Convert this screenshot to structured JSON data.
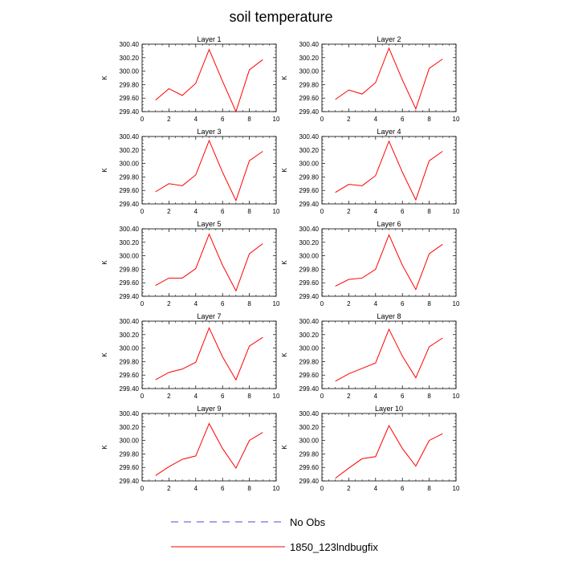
{
  "figure": {
    "title": "soil temperature"
  },
  "legend": {
    "entries": [
      {
        "label": "No Obs",
        "color": "#4b4bd6",
        "style": "dashed"
      },
      {
        "label": "1850_123lndbugfix",
        "color": "#ff0000",
        "style": "solid"
      }
    ]
  },
  "chart_data": [
    {
      "type": "line",
      "title": "Layer 1",
      "xlabel": "",
      "ylabel": "K",
      "xlim": [
        0,
        10
      ],
      "ylim": [
        299.4,
        300.4
      ],
      "x_ticks": [
        "0",
        "2",
        "4",
        "6",
        "8",
        "10"
      ],
      "y_ticks": [
        "299.40",
        "299.60",
        "299.80",
        "300.00",
        "300.20",
        "300.40"
      ],
      "series": [
        {
          "color": "#ff0000",
          "x": [
            1,
            2,
            3,
            4,
            5,
            6,
            7,
            8,
            9
          ],
          "y": [
            299.57,
            299.74,
            299.64,
            299.82,
            300.32,
            299.85,
            299.4,
            300.02,
            300.17
          ]
        }
      ]
    },
    {
      "type": "line",
      "title": "Layer 2",
      "xlabel": "",
      "ylabel": "K",
      "xlim": [
        0,
        10
      ],
      "ylim": [
        299.4,
        300.4
      ],
      "x_ticks": [
        "0",
        "2",
        "4",
        "6",
        "8",
        "10"
      ],
      "y_ticks": [
        "299.40",
        "299.60",
        "299.80",
        "300.00",
        "300.20",
        "300.40"
      ],
      "series": [
        {
          "color": "#ff0000",
          "x": [
            1,
            2,
            3,
            4,
            5,
            6,
            7,
            8,
            9
          ],
          "y": [
            299.58,
            299.72,
            299.66,
            299.83,
            300.34,
            299.87,
            299.44,
            300.04,
            300.18
          ]
        }
      ]
    },
    {
      "type": "line",
      "title": "Layer 3",
      "xlabel": "",
      "ylabel": "K",
      "xlim": [
        0,
        10
      ],
      "ylim": [
        299.4,
        300.4
      ],
      "x_ticks": [
        "0",
        "2",
        "4",
        "6",
        "8",
        "10"
      ],
      "y_ticks": [
        "299.40",
        "299.60",
        "299.80",
        "300.00",
        "300.20",
        "300.40"
      ],
      "series": [
        {
          "color": "#ff0000",
          "x": [
            1,
            2,
            3,
            4,
            5,
            6,
            7,
            8,
            9
          ],
          "y": [
            299.58,
            299.7,
            299.67,
            299.83,
            300.34,
            299.87,
            299.45,
            300.04,
            300.18
          ]
        }
      ]
    },
    {
      "type": "line",
      "title": "Layer 4",
      "xlabel": "",
      "ylabel": "K",
      "xlim": [
        0,
        10
      ],
      "ylim": [
        299.4,
        300.4
      ],
      "x_ticks": [
        "0",
        "2",
        "4",
        "6",
        "8",
        "10"
      ],
      "y_ticks": [
        "299.40",
        "299.60",
        "299.80",
        "300.00",
        "300.20",
        "300.40"
      ],
      "series": [
        {
          "color": "#ff0000",
          "x": [
            1,
            2,
            3,
            4,
            5,
            6,
            7,
            8,
            9
          ],
          "y": [
            299.57,
            299.69,
            299.67,
            299.82,
            300.33,
            299.87,
            299.46,
            300.04,
            300.18
          ]
        }
      ]
    },
    {
      "type": "line",
      "title": "Layer 5",
      "xlabel": "",
      "ylabel": "K",
      "xlim": [
        0,
        10
      ],
      "ylim": [
        299.4,
        300.4
      ],
      "x_ticks": [
        "0",
        "2",
        "4",
        "6",
        "8",
        "10"
      ],
      "y_ticks": [
        "299.40",
        "299.60",
        "299.80",
        "300.00",
        "300.20",
        "300.40"
      ],
      "series": [
        {
          "color": "#ff0000",
          "x": [
            1,
            2,
            3,
            4,
            5,
            6,
            7,
            8,
            9
          ],
          "y": [
            299.56,
            299.67,
            299.67,
            299.81,
            300.32,
            299.86,
            299.48,
            300.03,
            300.18
          ]
        }
      ]
    },
    {
      "type": "line",
      "title": "Layer 6",
      "xlabel": "",
      "ylabel": "K",
      "xlim": [
        0,
        10
      ],
      "ylim": [
        299.4,
        300.4
      ],
      "x_ticks": [
        "0",
        "2",
        "4",
        "6",
        "8",
        "10"
      ],
      "y_ticks": [
        "299.40",
        "299.60",
        "299.80",
        "300.00",
        "300.20",
        "300.40"
      ],
      "series": [
        {
          "color": "#ff0000",
          "x": [
            1,
            2,
            3,
            4,
            5,
            6,
            7,
            8,
            9
          ],
          "y": [
            299.55,
            299.65,
            299.67,
            299.8,
            300.31,
            299.86,
            299.5,
            300.03,
            300.17
          ]
        }
      ]
    },
    {
      "type": "line",
      "title": "Layer 7",
      "xlabel": "",
      "ylabel": "K",
      "xlim": [
        0,
        10
      ],
      "ylim": [
        299.4,
        300.4
      ],
      "x_ticks": [
        "0",
        "2",
        "4",
        "6",
        "8",
        "10"
      ],
      "y_ticks": [
        "299.40",
        "299.60",
        "299.80",
        "300.00",
        "300.20",
        "300.40"
      ],
      "series": [
        {
          "color": "#ff0000",
          "x": [
            1,
            2,
            3,
            4,
            5,
            6,
            7,
            8,
            9
          ],
          "y": [
            299.53,
            299.64,
            299.69,
            299.79,
            300.3,
            299.87,
            299.53,
            300.03,
            300.16
          ]
        }
      ]
    },
    {
      "type": "line",
      "title": "Layer 8",
      "xlabel": "",
      "ylabel": "K",
      "xlim": [
        0,
        10
      ],
      "ylim": [
        299.4,
        300.4
      ],
      "x_ticks": [
        "0",
        "2",
        "4",
        "6",
        "8",
        "10"
      ],
      "y_ticks": [
        "299.40",
        "299.60",
        "299.80",
        "300.00",
        "300.20",
        "300.40"
      ],
      "series": [
        {
          "color": "#ff0000",
          "x": [
            1,
            2,
            3,
            4,
            5,
            6,
            7,
            8,
            9
          ],
          "y": [
            299.51,
            299.62,
            299.7,
            299.78,
            300.28,
            299.88,
            299.56,
            300.02,
            300.15
          ]
        }
      ]
    },
    {
      "type": "line",
      "title": "Layer 9",
      "xlabel": "",
      "ylabel": "K",
      "xlim": [
        0,
        10
      ],
      "ylim": [
        299.4,
        300.4
      ],
      "x_ticks": [
        "0",
        "2",
        "4",
        "6",
        "8",
        "10"
      ],
      "y_ticks": [
        "299.40",
        "299.60",
        "299.80",
        "300.00",
        "300.20",
        "300.40"
      ],
      "series": [
        {
          "color": "#ff0000",
          "x": [
            1,
            2,
            3,
            4,
            5,
            6,
            7,
            8,
            9
          ],
          "y": [
            299.48,
            299.61,
            299.72,
            299.77,
            300.25,
            299.88,
            299.59,
            300.0,
            300.12
          ]
        }
      ]
    },
    {
      "type": "line",
      "title": "Layer 10",
      "xlabel": "",
      "ylabel": "K",
      "xlim": [
        0,
        10
      ],
      "ylim": [
        299.4,
        300.4
      ],
      "x_ticks": [
        "0",
        "2",
        "4",
        "6",
        "8",
        "10"
      ],
      "y_ticks": [
        "299.40",
        "299.60",
        "299.80",
        "300.00",
        "300.20",
        "300.40"
      ],
      "series": [
        {
          "color": "#ff0000",
          "x": [
            1,
            2,
            3,
            4,
            5,
            6,
            7,
            8,
            9
          ],
          "y": [
            299.44,
            299.59,
            299.73,
            299.76,
            300.22,
            299.88,
            299.62,
            300.0,
            300.1
          ]
        }
      ]
    }
  ]
}
